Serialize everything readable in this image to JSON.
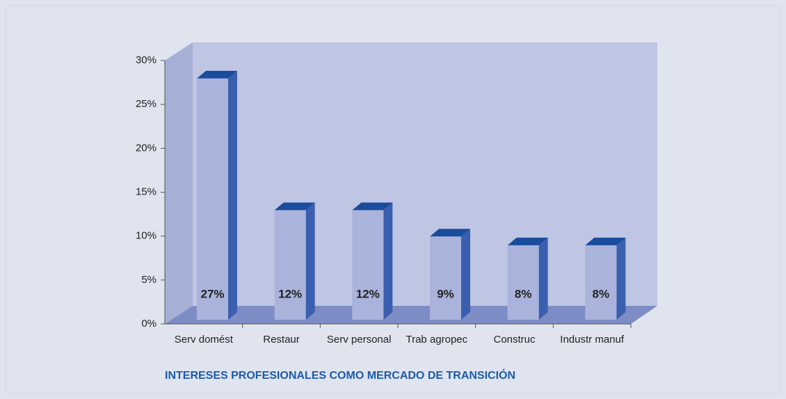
{
  "chart_data": {
    "type": "bar3d",
    "title": "INTERESES PROFESIONALES COMO MERCADO DE TRANSICIÓN",
    "categories": [
      "Serv domést",
      "Restaur",
      "Serv personal",
      "Trab agropec",
      "Construc",
      "Industr manuf"
    ],
    "values": [
      27,
      12,
      12,
      9,
      8,
      8
    ],
    "value_labels": [
      "27%",
      "12%",
      "12%",
      "9%",
      "8%",
      "8%"
    ],
    "color": "#a9b3dc",
    "ylim": [
      0,
      30
    ],
    "yticks": [
      {
        "value": 0,
        "label": "0%"
      },
      {
        "value": 5,
        "label": "5%"
      },
      {
        "value": 10,
        "label": "10%"
      },
      {
        "value": 15,
        "label": "15%"
      },
      {
        "value": 20,
        "label": "20%"
      },
      {
        "value": 25,
        "label": "25%"
      },
      {
        "value": 30,
        "label": "30%"
      }
    ]
  }
}
